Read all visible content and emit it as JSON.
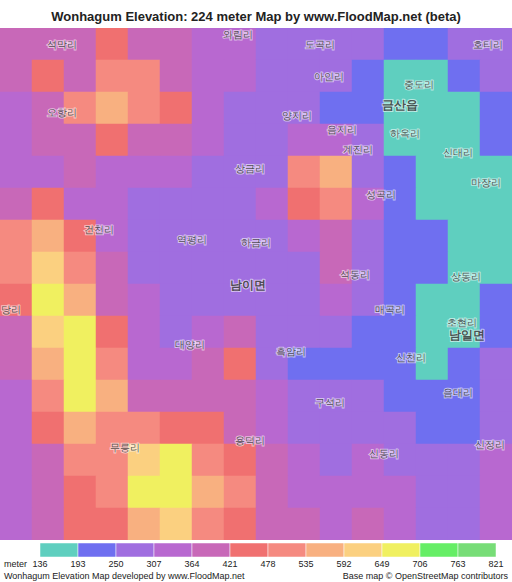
{
  "chart_data": {
    "type": "map",
    "title": "Wonhagum Elevation: 224 meter Map by www.FloodMap.net (beta)",
    "annotations": [
      "Wonhagum Elevation Map developed by www.FloodMap.net",
      "Base map © OpenStreetMap contributors"
    ],
    "tick_labels": false,
    "xlim": [
      0,
      16
    ],
    "ylim": [
      0,
      16
    ],
    "colorbar": {
      "label": "meter",
      "ticks": [
        136,
        193,
        250,
        307,
        364,
        421,
        478,
        535,
        592,
        649,
        706,
        763,
        821
      ],
      "colors": [
        "#5fcfbf",
        "#6f6ff0",
        "#a06ee0",
        "#b868d0",
        "#c868b8",
        "#f07070",
        "#f58a80",
        "#f8b080",
        "#fbd080",
        "#f0f060",
        "#66ee66",
        "#77dd77"
      ]
    },
    "cells": [
      [
        420,
        400,
        380,
        450,
        420,
        380,
        360,
        330,
        300,
        290,
        280,
        260,
        230,
        200,
        250,
        300
      ],
      [
        380,
        450,
        400,
        500,
        480,
        420,
        360,
        320,
        300,
        290,
        260,
        210,
        190,
        180,
        200,
        280
      ],
      [
        350,
        420,
        480,
        550,
        500,
        450,
        350,
        300,
        290,
        270,
        240,
        200,
        170,
        160,
        180,
        240
      ],
      [
        330,
        380,
        420,
        450,
        420,
        380,
        330,
        300,
        290,
        350,
        320,
        250,
        180,
        150,
        170,
        210
      ],
      [
        320,
        360,
        380,
        360,
        340,
        320,
        300,
        290,
        300,
        500,
        560,
        300,
        200,
        150,
        150,
        190
      ],
      [
        400,
        450,
        350,
        320,
        300,
        290,
        280,
        290,
        310,
        450,
        500,
        330,
        220,
        170,
        150,
        180
      ],
      [
        480,
        550,
        450,
        350,
        300,
        280,
        270,
        280,
        290,
        330,
        380,
        300,
        220,
        200,
        160,
        170
      ],
      [
        500,
        600,
        500,
        380,
        300,
        280,
        270,
        300,
        290,
        300,
        420,
        280,
        230,
        200,
        170,
        180
      ],
      [
        450,
        650,
        550,
        400,
        320,
        290,
        280,
        300,
        300,
        280,
        350,
        260,
        220,
        190,
        170,
        210
      ],
      [
        400,
        600,
        650,
        450,
        330,
        300,
        320,
        400,
        280,
        250,
        260,
        230,
        200,
        180,
        180,
        230
      ],
      [
        380,
        550,
        700,
        500,
        350,
        310,
        380,
        450,
        300,
        240,
        230,
        220,
        210,
        190,
        200,
        250
      ],
      [
        360,
        500,
        650,
        550,
        400,
        380,
        420,
        420,
        330,
        260,
        250,
        250,
        230,
        210,
        220,
        280
      ],
      [
        350,
        450,
        550,
        500,
        480,
        450,
        450,
        400,
        350,
        300,
        280,
        280,
        260,
        230,
        240,
        300
      ],
      [
        330,
        400,
        480,
        500,
        600,
        650,
        500,
        450,
        380,
        330,
        300,
        320,
        290,
        250,
        260,
        330
      ],
      [
        320,
        380,
        450,
        480,
        650,
        700,
        550,
        480,
        400,
        360,
        330,
        350,
        320,
        270,
        280,
        350
      ],
      [
        330,
        380,
        430,
        450,
        550,
        600,
        520,
        450,
        400,
        380,
        360,
        380,
        350,
        290,
        300,
        360
      ]
    ],
    "places": [
      {
        "name": "석막리",
        "x": 1.94,
        "y": 0.53
      },
      {
        "name": "와림리",
        "x": 7.44,
        "y": 0.2
      },
      {
        "name": "도곡리",
        "x": 10.0,
        "y": 0.53
      },
      {
        "name": "호티리",
        "x": 15.25,
        "y": 0.53
      },
      {
        "name": "아인리",
        "x": 10.28,
        "y": 1.53
      },
      {
        "name": "중도리",
        "x": 13.1,
        "y": 1.78
      },
      {
        "name": "금산읍",
        "x": 12.5,
        "y": 2.4
      },
      {
        "name": "오항리",
        "x": 1.94,
        "y": 2.63
      },
      {
        "name": "양지리",
        "x": 9.28,
        "y": 2.72
      },
      {
        "name": "음지리",
        "x": 10.7,
        "y": 3.16
      },
      {
        "name": "하옥리",
        "x": 12.66,
        "y": 3.31
      },
      {
        "name": "계진리",
        "x": 11.2,
        "y": 3.81
      },
      {
        "name": "신대리",
        "x": 14.3,
        "y": 3.9
      },
      {
        "name": "마장리",
        "x": 15.2,
        "y": 4.84
      },
      {
        "name": "상금리",
        "x": 7.8,
        "y": 4.4
      },
      {
        "name": "성곡리",
        "x": 11.9,
        "y": 5.2
      },
      {
        "name": "건천리",
        "x": 3.1,
        "y": 6.3
      },
      {
        "name": "역평리",
        "x": 6.0,
        "y": 6.6
      },
      {
        "name": "하금리",
        "x": 8.0,
        "y": 6.7
      },
      {
        "name": "석동리",
        "x": 11.1,
        "y": 7.7
      },
      {
        "name": "상동리",
        "x": 14.56,
        "y": 7.75
      },
      {
        "name": "남이면",
        "x": 7.75,
        "y": 8.03
      },
      {
        "name": "매곡리",
        "x": 12.2,
        "y": 8.8
      },
      {
        "name": "초현리",
        "x": 14.44,
        "y": 9.19
      },
      {
        "name": "당리",
        "x": 0.35,
        "y": 8.8
      },
      {
        "name": "남일면",
        "x": 14.6,
        "y": 9.6
      },
      {
        "name": "대양리",
        "x": 5.94,
        "y": 9.9
      },
      {
        "name": "흑암리",
        "x": 9.1,
        "y": 10.1
      },
      {
        "name": "신천리",
        "x": 12.84,
        "y": 10.3
      },
      {
        "name": "음대리",
        "x": 14.3,
        "y": 11.4
      },
      {
        "name": "구석리",
        "x": 10.3,
        "y": 11.7
      },
      {
        "name": "무릉리",
        "x": 3.9,
        "y": 13.1
      },
      {
        "name": "용덕리",
        "x": 7.8,
        "y": 12.9
      },
      {
        "name": "신동리",
        "x": 12.0,
        "y": 13.3
      },
      {
        "name": "신정리",
        "x": 15.3,
        "y": 13.0
      }
    ]
  }
}
